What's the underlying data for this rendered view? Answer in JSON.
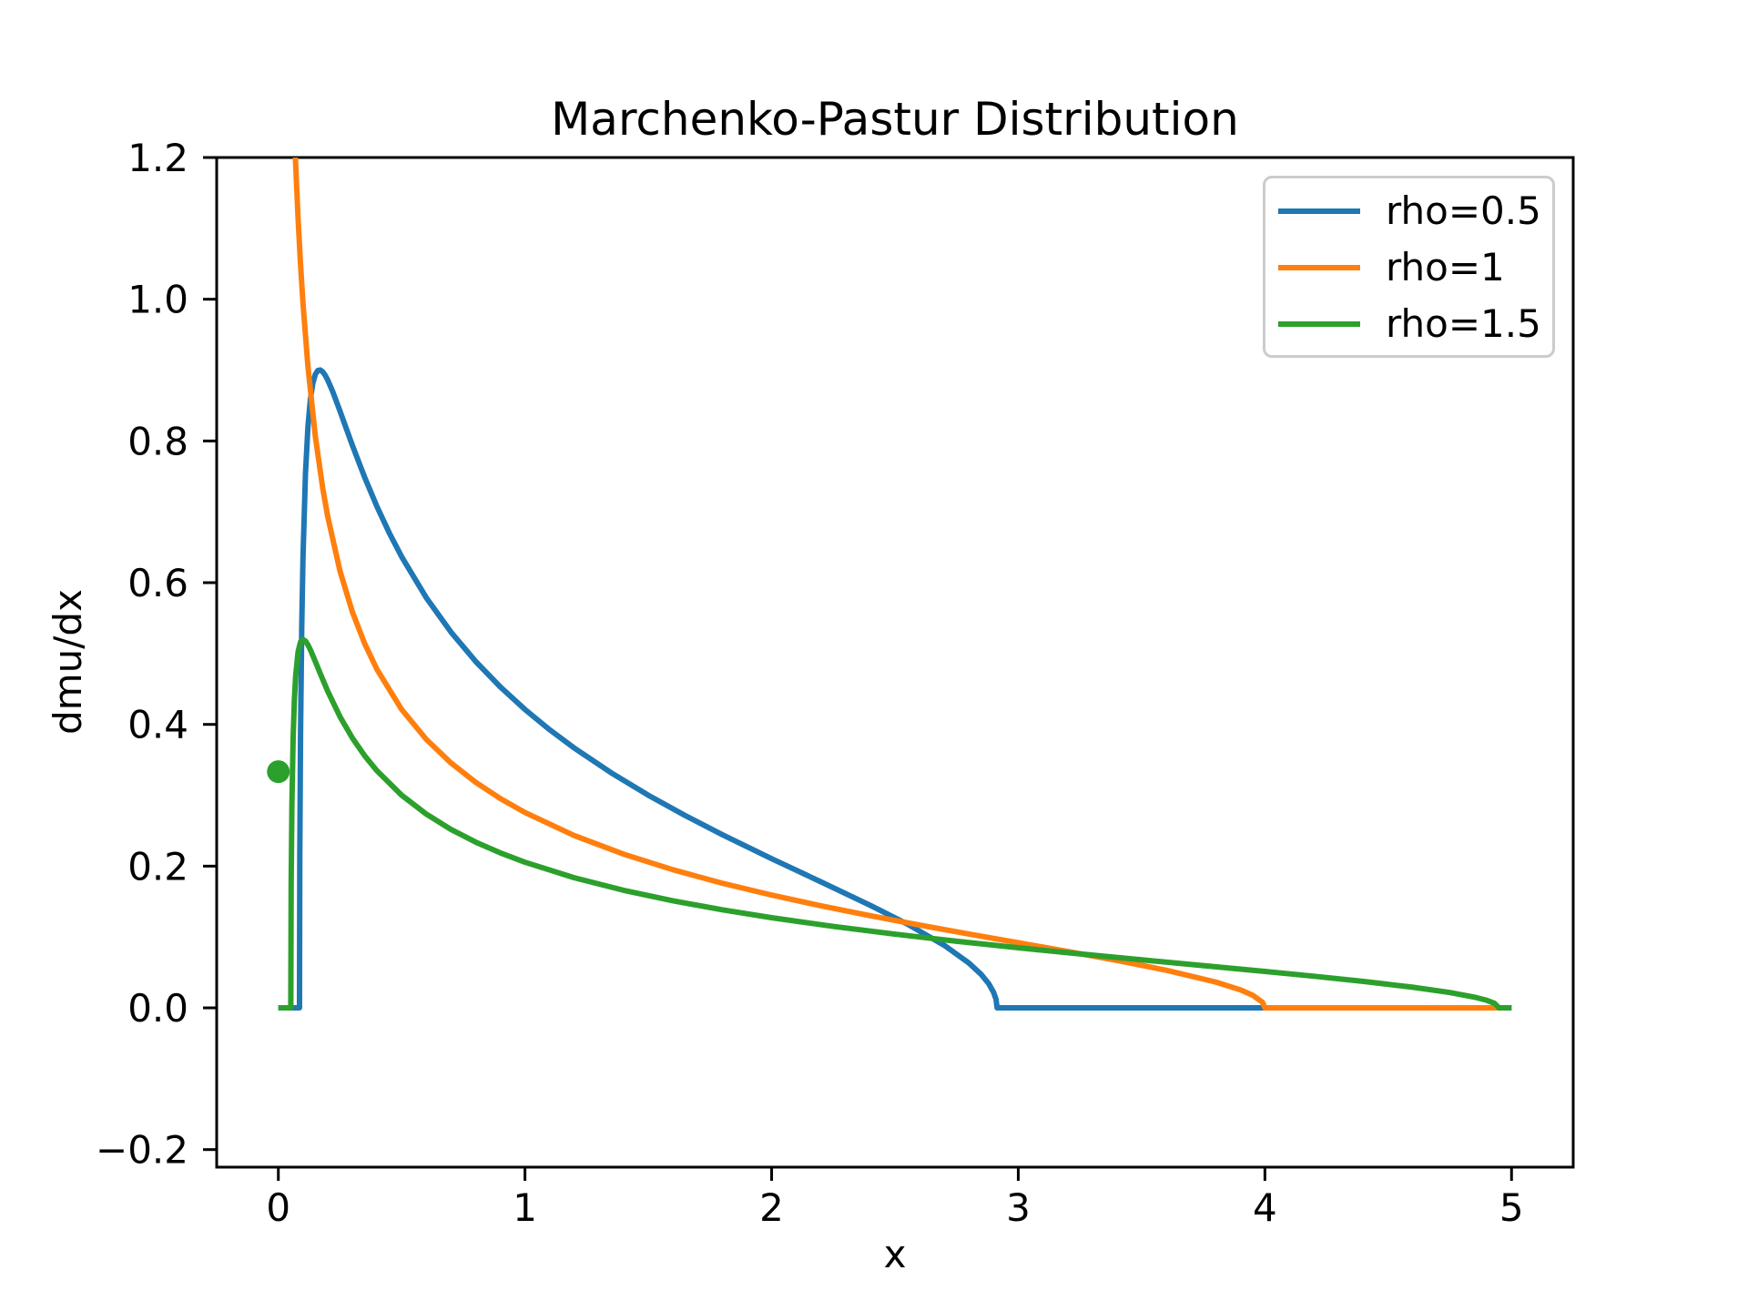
{
  "chart_data": {
    "type": "line",
    "title": "Marchenko-Pastur Distribution",
    "xlabel": "x",
    "ylabel": "dmu/dx",
    "xlim": [
      -0.25,
      5.25
    ],
    "ylim": [
      -0.2248,
      1.2
    ],
    "grid": false,
    "background_color": "#ffffff",
    "spine_color": "#000000",
    "xticks": {
      "values": [
        0,
        1,
        2,
        3,
        4,
        5
      ],
      "labels": [
        "0",
        "1",
        "2",
        "3",
        "4",
        "5"
      ]
    },
    "yticks": {
      "values": [
        -0.2,
        0.0,
        0.2,
        0.4,
        0.6,
        0.8,
        1.0,
        1.2
      ],
      "labels": [
        "−0.2",
        "0.0",
        "0.2",
        "0.4",
        "0.6",
        "0.8",
        "1.0",
        "1.2"
      ]
    },
    "legend": {
      "position": "upper right",
      "border_color": "#cccccc"
    },
    "series": [
      {
        "name": "rho=0.5",
        "color": "#1f77b4",
        "support": [
          0.0858,
          2.9142
        ],
        "x": [
          0,
          0.0858,
          0.087,
          0.09,
          0.095,
          0.1,
          0.11,
          0.12,
          0.13,
          0.14,
          0.15,
          0.16,
          0.17,
          0.18,
          0.19,
          0.2,
          0.22,
          0.25,
          0.28,
          0.3,
          0.35,
          0.4,
          0.45,
          0.5,
          0.6,
          0.7,
          0.8,
          0.9,
          1.0,
          1.1,
          1.2,
          1.35,
          1.5,
          1.65,
          1.8,
          2.0,
          2.2,
          2.4,
          2.55,
          2.7,
          2.8,
          2.85,
          2.88,
          2.9,
          2.91,
          2.9142,
          5.0
        ],
        "y": [
          0,
          0,
          0.214,
          0.3857,
          0.5399,
          0.6365,
          0.754,
          0.8201,
          0.859,
          0.8817,
          0.894,
          0.8994,
          0.9001,
          0.8975,
          0.8926,
          0.8861,
          0.87,
          0.8422,
          0.8131,
          0.794,
          0.7486,
          0.7073,
          0.6701,
          0.6366,
          0.5787,
          0.5303,
          0.4889,
          0.4529,
          0.4211,
          0.3925,
          0.3666,
          0.3316,
          0.3001,
          0.2713,
          0.2444,
          0.2105,
          0.1778,
          0.1447,
          0.1183,
          0.0882,
          0.0633,
          0.0471,
          0.0342,
          0.0219,
          0.0119,
          0,
          0
        ]
      },
      {
        "name": "rho=1",
        "color": "#ff7f0e",
        "support": [
          0,
          4
        ],
        "x": [
          0.04,
          0.05,
          0.06,
          0.07,
          0.08,
          0.09,
          0.1,
          0.12,
          0.15,
          0.18,
          0.2,
          0.25,
          0.3,
          0.35,
          0.4,
          0.5,
          0.6,
          0.7,
          0.8,
          0.9,
          1.0,
          1.2,
          1.4,
          1.6,
          1.8,
          2.0,
          2.2,
          2.4,
          2.6,
          2.8,
          3.0,
          3.2,
          3.4,
          3.6,
          3.8,
          3.9,
          3.95,
          3.99,
          4.0,
          5.0
        ],
        "y": [
          1.5836,
          1.4146,
          1.2897,
          1.1925,
          1.1141,
          1.049,
          0.9939,
          0.905,
          0.8064,
          0.7332,
          0.6937,
          0.6164,
          0.5589,
          0.514,
          0.4775,
          0.4211,
          0.3789,
          0.3456,
          0.3183,
          0.2954,
          0.2757,
          0.2431,
          0.2169,
          0.1949,
          0.1759,
          0.1592,
          0.144,
          0.13,
          0.1168,
          0.1042,
          0.0919,
          0.0796,
          0.0669,
          0.0531,
          0.0365,
          0.0255,
          0.0179,
          0.008,
          0,
          0
        ]
      },
      {
        "name": "rho=1.5",
        "color": "#2ca02c",
        "support": [
          0.0505,
          4.9495
        ],
        "x": [
          0,
          0.0505,
          0.052,
          0.055,
          0.06,
          0.065,
          0.07,
          0.08,
          0.09,
          0.1,
          0.11,
          0.12,
          0.13,
          0.15,
          0.17,
          0.2,
          0.25,
          0.3,
          0.35,
          0.4,
          0.5,
          0.6,
          0.7,
          0.8,
          0.9,
          1.0,
          1.2,
          1.4,
          1.6,
          1.8,
          2.0,
          2.25,
          2.5,
          2.75,
          3.0,
          3.25,
          3.5,
          3.75,
          4.0,
          4.2,
          4.4,
          4.6,
          4.75,
          4.85,
          4.9,
          4.93,
          4.9495,
          5.0
        ],
        "y": [
          0,
          0,
          0.1743,
          0.286,
          0.3809,
          0.4343,
          0.4674,
          0.5026,
          0.5164,
          0.5198,
          0.5176,
          0.5122,
          0.5052,
          0.4888,
          0.4717,
          0.447,
          0.4109,
          0.3809,
          0.3558,
          0.3345,
          0.3001,
          0.2734,
          0.2518,
          0.2339,
          0.2187,
          0.2055,
          0.1836,
          0.1659,
          0.1511,
          0.1384,
          0.1272,
          0.1149,
          0.104,
          0.094,
          0.0848,
          0.0761,
          0.0678,
          0.0596,
          0.0514,
          0.0446,
          0.0373,
          0.0291,
          0.0216,
          0.0151,
          0.0106,
          0.0066,
          0,
          0
        ]
      }
    ],
    "point_mass": {
      "series": "rho=1.5",
      "color": "#2ca02c",
      "x": 0,
      "y": 0.3333,
      "radius_px": 12.5
    }
  }
}
